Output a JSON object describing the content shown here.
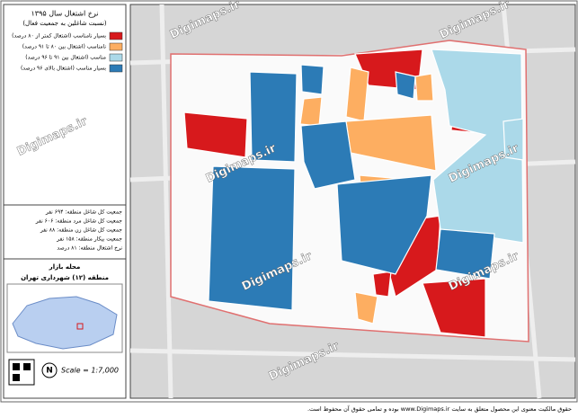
{
  "panel": {
    "title": "نرخ اشتغال سال ۱۳۹۵",
    "subtitle": "(نسبت شاغلین به جمعیت فعال)",
    "legend": [
      {
        "label": "بسیار نامناسب (اشتغال کمتر از ۸۰ درصد)",
        "color": "#d7191c"
      },
      {
        "label": "نامناسب (اشتغال بین ۸۰ تا ۹۱ درصد)",
        "color": "#fdae61"
      },
      {
        "label": "مناسب (اشتغال بین ۹۱ تا ۹۶ درصد)",
        "color": "#abd9e9"
      },
      {
        "label": "بسیار مناسب (اشتغال بالای ۹۶ درصد)",
        "color": "#2c7bb6"
      }
    ],
    "stats": [
      "جمعیت کل شاغل منطقه: ۶۹۴ نفر",
      "جمعیت کل شاغل مرد منطقه: ۶۰۶ نفر",
      "جمعیت کل شاغل زن منطقه: ۸۸ نفر",
      "جمعیت بیکار منطقه: ۱۵۸ نفر",
      "نرخ اشتغال منطقه: ۸۱ درصد"
    ],
    "neighborhood": "محله بازار",
    "district": "منطقه (۱۲) شهرداری تهران",
    "north": "N",
    "scale": "Scale = 1:7,000"
  },
  "map": {
    "watermark": "Digimaps.ir"
  },
  "footer": "حقوق مالکیت معنوی این محصول متعلق به سایت www.Digimaps.ir بوده و تمامی حقوق آن محفوظ است."
}
